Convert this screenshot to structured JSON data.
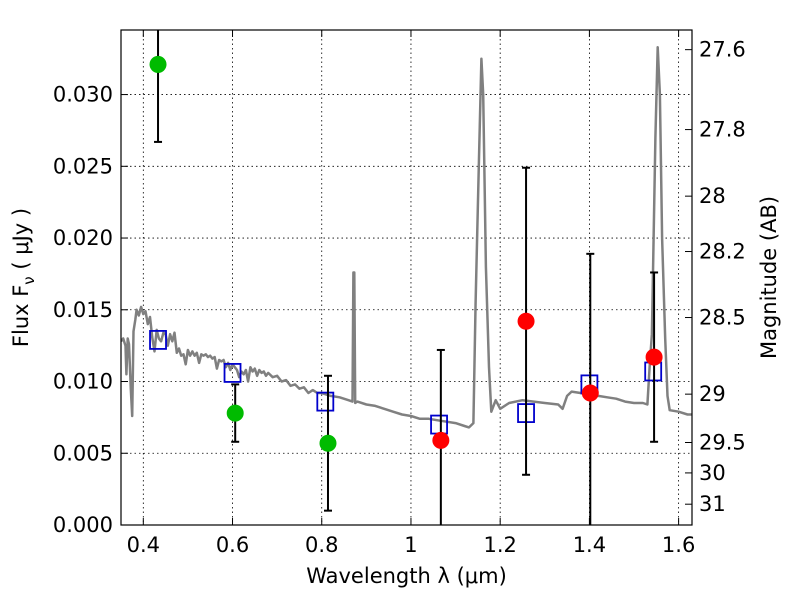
{
  "chart_data": {
    "type": "scatter",
    "xlabel": "Wavelength  λ (μm)",
    "ylabel": "Flux  F",
    "ylabel_sub": "ν",
    "ylabel_unit": " ( μJy )",
    "y2label": "Magnitude (AB)",
    "xlim": [
      0.35,
      1.63
    ],
    "ylim": [
      0.0,
      0.0345
    ],
    "grid": true,
    "x_ticks": [
      0.4,
      0.6,
      0.8,
      1.0,
      1.2,
      1.4,
      1.6
    ],
    "x_tick_labels": [
      "0.4",
      "0.6",
      "0.8",
      "1",
      "1.2",
      "1.4",
      "1.6"
    ],
    "y_ticks": [
      0.0,
      0.005,
      0.01,
      0.015,
      0.02,
      0.025,
      0.03
    ],
    "y_tick_labels": [
      "0.000",
      "0.005",
      "0.010",
      "0.015",
      "0.020",
      "0.025",
      "0.030"
    ],
    "y2_ticks": [
      {
        "label": "27.6",
        "flux": 0.03313
      },
      {
        "label": "27.8",
        "flux": 0.02756
      },
      {
        "label": "28",
        "flux": 0.02292
      },
      {
        "label": "28.2",
        "flux": 0.01906
      },
      {
        "label": "28.5",
        "flux": 0.01446
      },
      {
        "label": "29",
        "flux": 0.00912
      },
      {
        "label": "29.5",
        "flux": 0.00575
      },
      {
        "label": "30",
        "flux": 0.00363
      },
      {
        "label": "31",
        "flux": 0.00145
      }
    ],
    "series": [
      {
        "kind": "line",
        "color": "#808080",
        "points": [
          [
            0.35,
            0.0128
          ],
          [
            0.355,
            0.013
          ],
          [
            0.36,
            0.0125
          ],
          [
            0.362,
            0.0105
          ],
          [
            0.365,
            0.013
          ],
          [
            0.368,
            0.0126
          ],
          [
            0.372,
            0.0095
          ],
          [
            0.375,
            0.0076
          ],
          [
            0.378,
            0.0135
          ],
          [
            0.382,
            0.0143
          ],
          [
            0.385,
            0.015
          ],
          [
            0.39,
            0.0146
          ],
          [
            0.395,
            0.0152
          ],
          [
            0.4,
            0.0147
          ],
          [
            0.405,
            0.0149
          ],
          [
            0.41,
            0.014
          ],
          [
            0.415,
            0.0145
          ],
          [
            0.42,
            0.0131
          ],
          [
            0.425,
            0.0121
          ],
          [
            0.43,
            0.0136
          ],
          [
            0.435,
            0.013
          ],
          [
            0.44,
            0.0128
          ],
          [
            0.445,
            0.0134
          ],
          [
            0.45,
            0.0133
          ],
          [
            0.455,
            0.0125
          ],
          [
            0.46,
            0.0133
          ],
          [
            0.465,
            0.0128
          ],
          [
            0.47,
            0.0134
          ],
          [
            0.475,
            0.012
          ],
          [
            0.48,
            0.0123
          ],
          [
            0.485,
            0.0118
          ],
          [
            0.49,
            0.0119
          ],
          [
            0.495,
            0.0112
          ],
          [
            0.5,
            0.0122
          ],
          [
            0.505,
            0.0118
          ],
          [
            0.51,
            0.0121
          ],
          [
            0.515,
            0.0118
          ],
          [
            0.52,
            0.012
          ],
          [
            0.525,
            0.0113
          ],
          [
            0.53,
            0.0119
          ],
          [
            0.535,
            0.0118
          ],
          [
            0.54,
            0.0119
          ],
          [
            0.545,
            0.0117
          ],
          [
            0.55,
            0.0118
          ],
          [
            0.555,
            0.0116
          ],
          [
            0.56,
            0.0117
          ],
          [
            0.565,
            0.0109
          ],
          [
            0.57,
            0.0115
          ],
          [
            0.575,
            0.0114
          ],
          [
            0.58,
            0.0115
          ],
          [
            0.585,
            0.011
          ],
          [
            0.59,
            0.0113
          ],
          [
            0.595,
            0.0108
          ],
          [
            0.6,
            0.0112
          ],
          [
            0.605,
            0.011
          ],
          [
            0.61,
            0.0108
          ],
          [
            0.615,
            0.0103
          ],
          [
            0.62,
            0.0107
          ],
          [
            0.625,
            0.0105
          ],
          [
            0.63,
            0.0108
          ],
          [
            0.635,
            0.01
          ],
          [
            0.64,
            0.011
          ],
          [
            0.645,
            0.0107
          ],
          [
            0.65,
            0.0109
          ],
          [
            0.655,
            0.0104
          ],
          [
            0.66,
            0.0108
          ],
          [
            0.665,
            0.0106
          ],
          [
            0.67,
            0.0107
          ],
          [
            0.675,
            0.0104
          ],
          [
            0.68,
            0.0106
          ],
          [
            0.69,
            0.0103
          ],
          [
            0.7,
            0.0104
          ],
          [
            0.71,
            0.01
          ],
          [
            0.72,
            0.0101
          ],
          [
            0.73,
            0.0097
          ],
          [
            0.74,
            0.0098
          ],
          [
            0.75,
            0.0095
          ],
          [
            0.76,
            0.0096
          ],
          [
            0.77,
            0.0092
          ],
          [
            0.78,
            0.0094
          ],
          [
            0.79,
            0.0092
          ],
          [
            0.8,
            0.0092
          ],
          [
            0.82,
            0.009
          ],
          [
            0.84,
            0.0089
          ],
          [
            0.86,
            0.0087
          ],
          [
            0.869,
            0.0086
          ],
          [
            0.871,
            0.0176
          ],
          [
            0.873,
            0.0176
          ],
          [
            0.875,
            0.0085
          ],
          [
            0.88,
            0.0086
          ],
          [
            0.9,
            0.0084
          ],
          [
            0.92,
            0.0083
          ],
          [
            0.94,
            0.0081
          ],
          [
            0.96,
            0.0079
          ],
          [
            0.98,
            0.0077
          ],
          [
            1.0,
            0.0076
          ],
          [
            1.02,
            0.0074
          ],
          [
            1.04,
            0.0074
          ],
          [
            1.06,
            0.0073
          ],
          [
            1.08,
            0.0072
          ],
          [
            1.1,
            0.0071
          ],
          [
            1.12,
            0.0069
          ],
          [
            1.13,
            0.0068
          ],
          [
            1.14,
            0.0071
          ],
          [
            1.145,
            0.0155
          ],
          [
            1.152,
            0.025
          ],
          [
            1.158,
            0.0325
          ],
          [
            1.162,
            0.03
          ],
          [
            1.168,
            0.018
          ],
          [
            1.175,
            0.011
          ],
          [
            1.18,
            0.0079
          ],
          [
            1.19,
            0.0087
          ],
          [
            1.2,
            0.0081
          ],
          [
            1.22,
            0.0085
          ],
          [
            1.25,
            0.0087
          ],
          [
            1.3,
            0.0085
          ],
          [
            1.33,
            0.0084
          ],
          [
            1.34,
            0.0081
          ],
          [
            1.35,
            0.009
          ],
          [
            1.36,
            0.0093
          ],
          [
            1.38,
            0.0092
          ],
          [
            1.4,
            0.0091
          ],
          [
            1.42,
            0.009
          ],
          [
            1.44,
            0.0089
          ],
          [
            1.46,
            0.0088
          ],
          [
            1.48,
            0.0086
          ],
          [
            1.5,
            0.0085
          ],
          [
            1.52,
            0.0085
          ],
          [
            1.53,
            0.0084
          ],
          [
            1.535,
            0.011
          ],
          [
            1.54,
            0.0133
          ],
          [
            1.548,
            0.027
          ],
          [
            1.553,
            0.0333
          ],
          [
            1.558,
            0.03
          ],
          [
            1.563,
            0.02
          ],
          [
            1.57,
            0.013
          ],
          [
            1.575,
            0.009
          ],
          [
            1.58,
            0.008
          ],
          [
            1.6,
            0.0079
          ],
          [
            1.62,
            0.0077
          ],
          [
            1.63,
            0.0077
          ]
        ]
      },
      {
        "kind": "squares",
        "color": "#0000cc",
        "points": [
          [
            0.433,
            0.0129
          ],
          [
            0.6,
            0.0106
          ],
          [
            0.808,
            0.0086
          ],
          [
            1.063,
            0.007
          ],
          [
            1.258,
            0.0078
          ],
          [
            1.4,
            0.0098
          ],
          [
            1.543,
            0.0107
          ]
        ]
      },
      {
        "kind": "points",
        "color": "#00bb00",
        "points": [
          [
            0.433,
            0.0321,
            0.0054
          ],
          [
            0.606,
            0.0078,
            0.002
          ],
          [
            0.814,
            0.0057,
            0.0047
          ]
        ]
      },
      {
        "kind": "points",
        "color": "#ff0000",
        "points": [
          [
            1.067,
            0.0059,
            0.0063
          ],
          [
            1.258,
            0.0142,
            0.0107
          ],
          [
            1.402,
            0.0092,
            0.0097
          ],
          [
            1.545,
            0.0117,
            0.0059
          ]
        ]
      }
    ]
  }
}
